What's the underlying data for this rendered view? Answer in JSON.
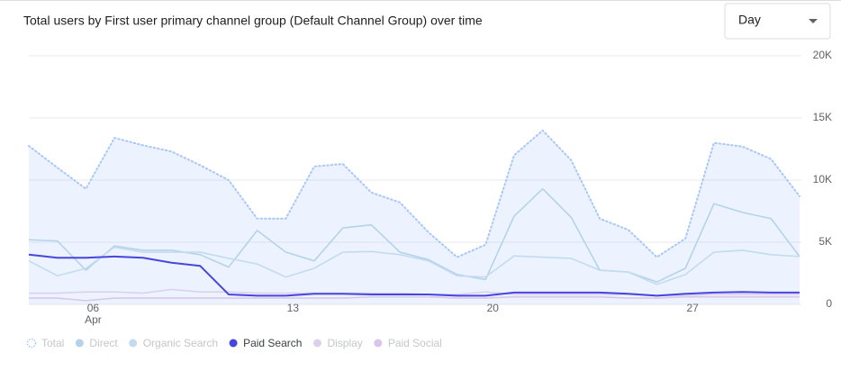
{
  "controls": {
    "granularity": "Day"
  },
  "chart_data": {
    "type": "line",
    "title": "Total users by First user primary channel group (Default Channel Group) over time",
    "categories": [
      null,
      null,
      "06",
      null,
      null,
      null,
      null,
      null,
      null,
      "13",
      null,
      null,
      null,
      null,
      null,
      null,
      "20",
      null,
      null,
      null,
      null,
      null,
      null,
      "27",
      null,
      null,
      null,
      null
    ],
    "category_months": [
      null,
      null,
      "Apr",
      null,
      null,
      null,
      null,
      null,
      null,
      null,
      null,
      null,
      null,
      null,
      null,
      null,
      null,
      null,
      null,
      null,
      null,
      null,
      null,
      null,
      null,
      null,
      null,
      null
    ],
    "ylim": [
      0,
      20000
    ],
    "yticks": [
      0,
      {
        "value": 5000,
        "label": "5K"
      },
      {
        "value": 10000,
        "label": "10K"
      },
      {
        "value": 15000,
        "label": "15K"
      },
      {
        "value": 20000,
        "label": "20K"
      }
    ],
    "grid": true,
    "legend": "bottom-left",
    "series": [
      {
        "name": "Total",
        "color": "#a8c7fa",
        "style": "dotted",
        "area": true,
        "active": false,
        "values": [
          12750,
          11000,
          9300,
          13400,
          12800,
          12300,
          11200,
          10000,
          6900,
          6900,
          11100,
          11300,
          9000,
          8200,
          5800,
          3800,
          4800,
          12000,
          14000,
          11600,
          6900,
          6000,
          3800,
          5300,
          13000,
          12700,
          11700,
          8700
        ]
      },
      {
        "name": "Direct",
        "color": "#b4d3ea",
        "style": "solid",
        "active": false,
        "values": [
          5200,
          5100,
          2750,
          4700,
          4350,
          4350,
          4000,
          3000,
          5950,
          4200,
          3500,
          6150,
          6400,
          4200,
          3600,
          2400,
          2000,
          7100,
          9300,
          7000,
          2750,
          2600,
          1800,
          2900,
          8100,
          7400,
          6900,
          3850
        ]
      },
      {
        "name": "Organic Search",
        "color": "#c3dbef",
        "style": "solid",
        "active": false,
        "values": [
          3500,
          2300,
          2900,
          4600,
          4200,
          4200,
          4200,
          3700,
          3250,
          2200,
          2900,
          4200,
          4250,
          4000,
          3500,
          2300,
          2200,
          3900,
          3800,
          3700,
          2750,
          2600,
          1600,
          2400,
          4200,
          4350,
          4000,
          3850
        ]
      },
      {
        "name": "Paid Search",
        "color": "#4646dc",
        "style": "solid",
        "active": true,
        "values": [
          4000,
          3750,
          3750,
          3850,
          3750,
          3350,
          3100,
          800,
          700,
          700,
          850,
          850,
          800,
          800,
          800,
          700,
          700,
          950,
          950,
          950,
          950,
          850,
          700,
          850,
          950,
          1000,
          950,
          950
        ]
      },
      {
        "name": "Display",
        "color": "#ddd0ef",
        "style": "solid",
        "active": false,
        "values": [
          900,
          900,
          1000,
          1000,
          900,
          1200,
          1000,
          1000,
          900,
          900,
          900,
          900,
          900,
          900,
          800,
          800,
          1000,
          800,
          800,
          800,
          800,
          800,
          700,
          700,
          800,
          800,
          800,
          800
        ]
      },
      {
        "name": "Paid Social",
        "color": "#d9c6ec",
        "style": "solid",
        "active": false,
        "values": [
          500,
          500,
          300,
          500,
          500,
          500,
          500,
          500,
          500,
          500,
          500,
          500,
          600,
          600,
          600,
          500,
          500,
          600,
          600,
          600,
          600,
          500,
          500,
          600,
          600,
          600,
          600,
          600
        ]
      }
    ]
  }
}
